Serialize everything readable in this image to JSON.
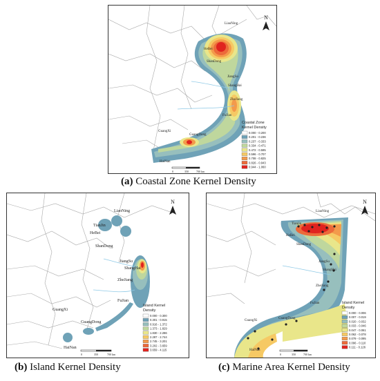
{
  "captions": {
    "a": {
      "letter": "(a)",
      "text": " Coastal Zone Kernel Density"
    },
    "b": {
      "letter": "(b)",
      "text": " Island Kernel Density"
    },
    "c": {
      "letter": "(c)",
      "text": " Marine Area Kernel Density"
    }
  },
  "north_label": "N",
  "panel_a": {
    "places": [
      "LiaoNing",
      "HeBei",
      "ShanDong",
      "JiangSu",
      "ShangHai",
      "ZheJiang",
      "FuJian",
      "GuangDong",
      "GuangXi",
      "HaiNan"
    ],
    "legend_title_1": "Coastal Zone",
    "legend_title_2": "Kernel Density",
    "legend": [
      "0.000 - 0.200",
      "0.201 - 0.236",
      "0.237 - 0.333",
      "0.334 - 0.471",
      "0.472 - 0.595",
      "0.596 - 0.707",
      "0.708 - 0.825",
      "0.826 - 0.943",
      "0.944 - 1.060"
    ],
    "scale": [
      "0",
      "350",
      "700 km"
    ]
  },
  "panel_b": {
    "places": [
      "LiaoNing",
      "TianJin",
      "HeBei",
      "ShanDong",
      "JiangSu",
      "ShangHai",
      "ZheJiang",
      "FuJian",
      "GuangXi",
      "GuangDong",
      "HaiNan"
    ],
    "legend_title_1": "Island Kernel",
    "legend_title_2": "Density",
    "legend": [
      "0.000 - 0.300",
      "0.301 - 0.915",
      "0.916 - 1.372",
      "1.373 - 1.829",
      "1.830 - 2.286",
      "2.287 - 2.744",
      "2.745 - 3.201",
      "3.202 - 3.659",
      "3.659 - 4.115"
    ],
    "scale": [
      "0",
      "350",
      "700 km"
    ]
  },
  "panel_c": {
    "places": [
      "LiaoNing",
      "HeBei",
      "ShanDong",
      "JiangSu",
      "ShangHai",
      "ZheJiang",
      "FuJian",
      "GuangXi",
      "GuangDong",
      "HaiNan",
      "Tianjin"
    ],
    "legend_title_1": "Island Kernel",
    "legend_title_2": "Density",
    "legend": [
      "0.000 - 0.006",
      "0.007 - 0.019",
      "0.020 - 0.032",
      "0.033 - 0.046",
      "0.047 - 0.061",
      "0.062 - 0.078",
      "0.079 - 0.095",
      "0.096 - 0.110",
      "0.111 - 0.126"
    ],
    "scale": [
      "0",
      "350",
      "700 km"
    ]
  },
  "colors": {
    "ramp": [
      "#ffffff",
      "#6fa2b7",
      "#97bfbd",
      "#bfd79d",
      "#e9e68a",
      "#f6c964",
      "#f39a4b",
      "#ec6a3a",
      "#e0231f"
    ],
    "province_line": "#9a9a9a",
    "river": "#8ec9e6"
  }
}
